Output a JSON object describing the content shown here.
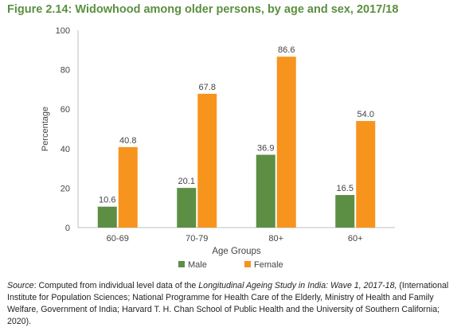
{
  "figure": {
    "title": "Figure 2.14: Widowhood among older persons, by age and sex, 2017/18"
  },
  "chart_data": {
    "type": "bar",
    "title": "Figure 2.14: Widowhood among older persons, by age and sex, 2017/18",
    "xlabel": "Age Groups",
    "ylabel": "Percentage",
    "ylim": [
      0,
      100
    ],
    "yticks": [
      "0",
      "20",
      "40",
      "60",
      "80",
      "100"
    ],
    "categories": [
      "60-69",
      "70-79",
      "80+",
      "60+"
    ],
    "series": [
      {
        "name": "Male",
        "color": "#5c8f44",
        "values": [
          10.6,
          20.1,
          36.9,
          16.5
        ],
        "labels": [
          "10.6",
          "20.1",
          "36.9",
          "16.5"
        ]
      },
      {
        "name": "Female",
        "color": "#f7941d",
        "values": [
          40.8,
          67.8,
          86.6,
          54.0
        ],
        "labels": [
          "40.8",
          "67.8",
          "86.6",
          "54.0"
        ]
      }
    ],
    "grid": false,
    "legend": "bottom-center"
  },
  "source": {
    "label": "Source",
    "t1": ": Computed from individual level data of the ",
    "italic": "Longitudinal Ageing Study in India: Wave 1, 2017-18,",
    "t2": " (International Institute for Population Sciences; National Programme for Health Care of the Elderly, Ministry of Health and Family Welfare, Government of India; Harvard T. H. Chan School of Public Health and the University of Southern California; 2020)."
  }
}
